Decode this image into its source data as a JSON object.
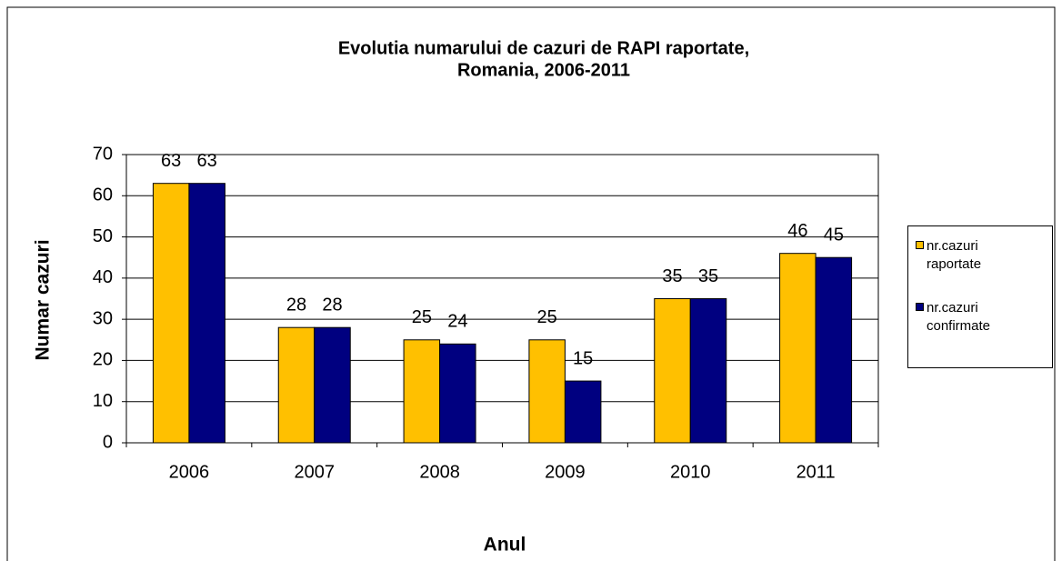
{
  "chart_data": {
    "type": "bar",
    "title": [
      "Evolutia numarului de cazuri de RAPI raportate,",
      "Romania, 2006-2011"
    ],
    "x_label": "Anul",
    "y_label": "Numar cazuri",
    "categories": [
      "2006",
      "2007",
      "2008",
      "2009",
      "2010",
      "2011"
    ],
    "series": [
      {
        "name": "nr.cazuri raportate",
        "color": "#ffc000",
        "values": [
          63,
          28,
          25,
          25,
          35,
          46
        ]
      },
      {
        "name": "nr.cazuri confirmate",
        "color": "#000080",
        "values": [
          63,
          28,
          24,
          15,
          35,
          45
        ]
      }
    ],
    "ylim": [
      0,
      70
    ],
    "yticks": [
      0,
      10,
      20,
      30,
      40,
      50,
      60,
      70
    ],
    "grid": true,
    "legend": "right"
  }
}
